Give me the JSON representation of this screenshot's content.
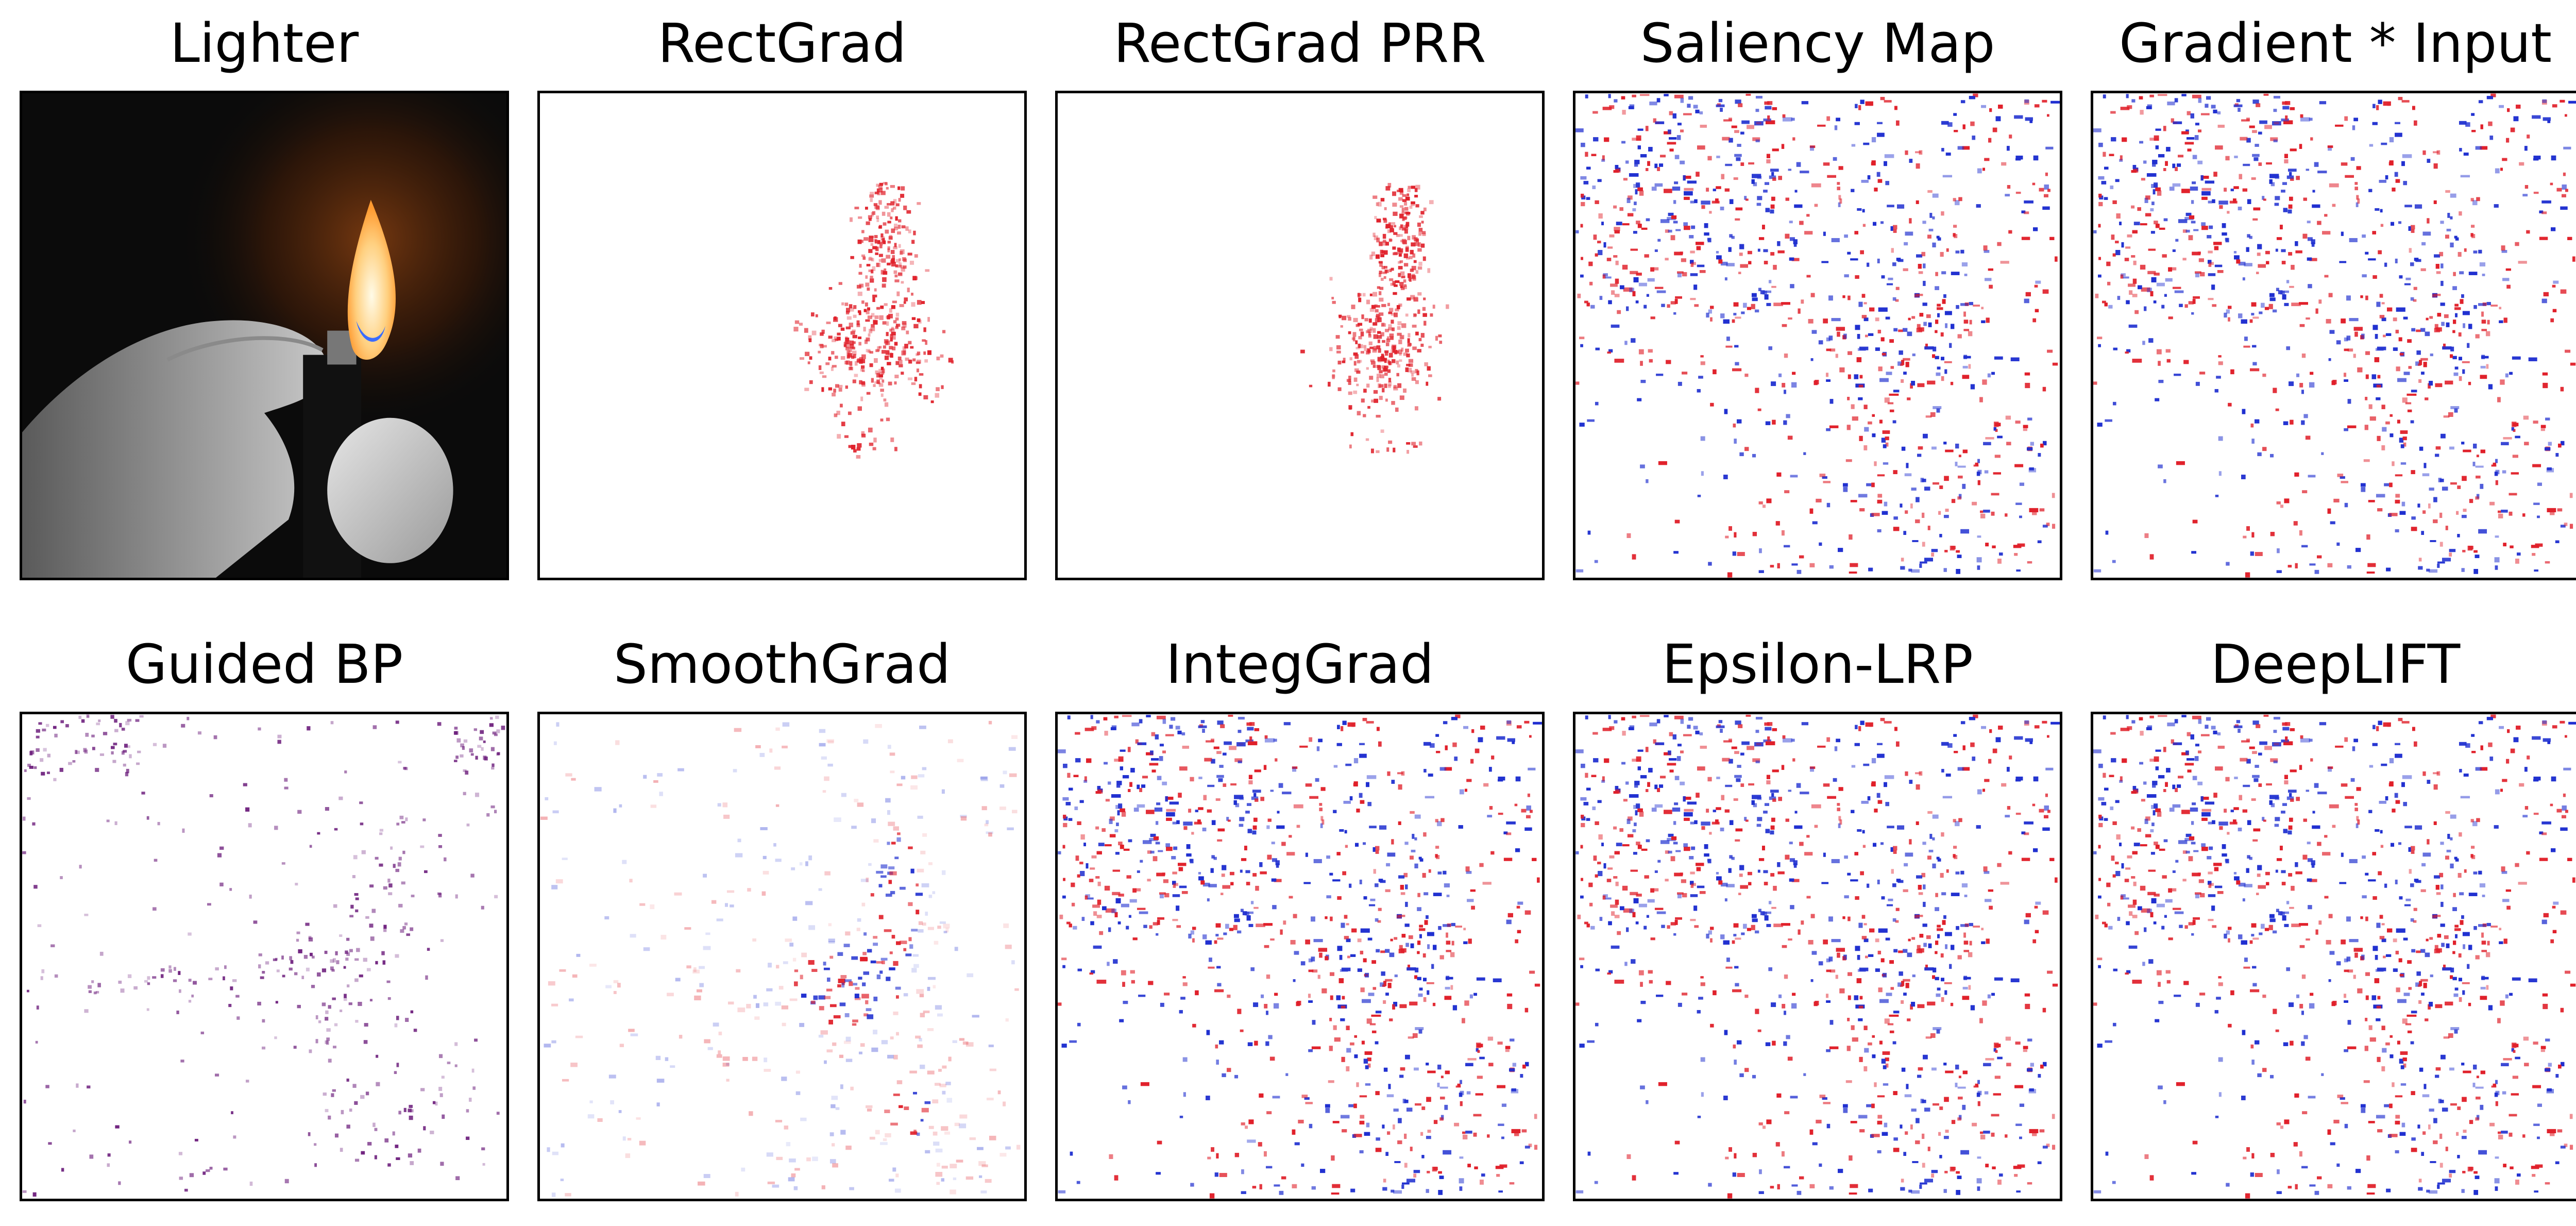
{
  "figure": {
    "panels": [
      {
        "title": "Lighter",
        "kind": "photo"
      },
      {
        "title": "RectGrad",
        "kind": "rectgrad"
      },
      {
        "title": "RectGrad PRR",
        "kind": "rectgrad_prr"
      },
      {
        "title": "Saliency Map",
        "kind": "noise"
      },
      {
        "title": "Gradient * Input",
        "kind": "noise"
      },
      {
        "title": "Guided BP",
        "kind": "guided"
      },
      {
        "title": "SmoothGrad",
        "kind": "smooth"
      },
      {
        "title": "IntegGrad",
        "kind": "noise"
      },
      {
        "title": "Epsilon-LRP",
        "kind": "noise"
      },
      {
        "title": "DeepLIFT",
        "kind": "noise"
      }
    ],
    "colors": {
      "positive": "#e0202a",
      "negative": "#2030d0",
      "guided": "#6a1a7a",
      "flame_core": "#fff6d0",
      "flame_outer": "#ffb040",
      "flame_blue": "#3a6cff",
      "background_dark": "#0a0a0a"
    }
  }
}
